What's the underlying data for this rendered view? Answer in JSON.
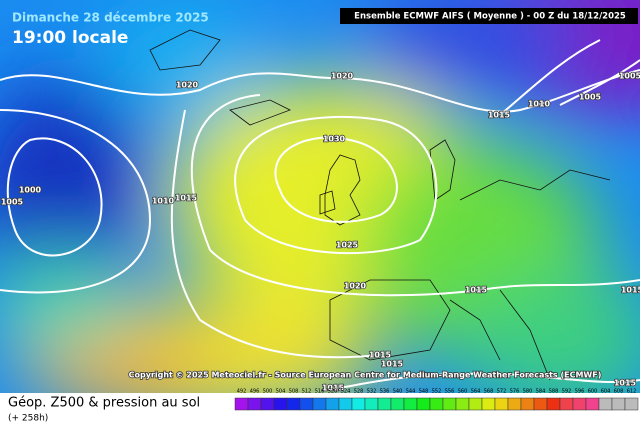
{
  "header": {
    "date": "Dimanche 28 décembre 2025",
    "time": "19:00 locale",
    "run": "Ensemble ECMWF AIFS  ( Moyenne )  - 00 Z du 18/12/2025"
  },
  "isobar_labels": [
    "1020",
    "1020",
    "1030",
    "1015",
    "1010",
    "1000",
    "1005",
    "1025",
    "1020",
    "1015",
    "1015",
    "1010",
    "1005",
    "1005",
    "1015",
    "1015",
    "1015",
    "1015",
    "1015"
  ],
  "copyright": "Copyright © 2025 Meteociel.fr - Source European Centre for Medium-Range Weather Forecasts (ECMWF)",
  "footer": {
    "title": "Géop. Z500 & pression au sol",
    "lead": "(+ 258h)"
  },
  "colorbar": {
    "labels": [
      492,
      496,
      500,
      504,
      508,
      512,
      516,
      520,
      524,
      528,
      532,
      536,
      540,
      544,
      548,
      552,
      556,
      560,
      564,
      568,
      572,
      576,
      580,
      584,
      588,
      592,
      596,
      600,
      604,
      608,
      612
    ]
  }
}
